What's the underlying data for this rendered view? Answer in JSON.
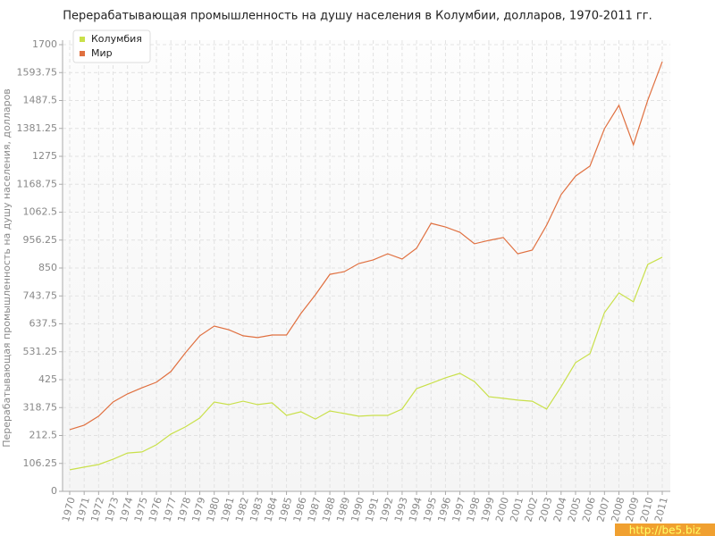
{
  "chart_data": {
    "type": "line",
    "title": "Перерабатывающая промышленность на душу населения в Колумбии, долларов, 1970-2011 гг.",
    "y_label": "Перерабатывающая промышленность на душу населения, долларов",
    "watermark": "http://be5.biz",
    "categories": [
      "1970",
      "1971",
      "1972",
      "1973",
      "1974",
      "1975",
      "1976",
      "1977",
      "1978",
      "1979",
      "1980",
      "1981",
      "1982",
      "1983",
      "1984",
      "1985",
      "1986",
      "1987",
      "1988",
      "1989",
      "1990",
      "1991",
      "1992",
      "1993",
      "1994",
      "1995",
      "1996",
      "1997",
      "1998",
      "1999",
      "2000",
      "2001",
      "2002",
      "2003",
      "2004",
      "2005",
      "2006",
      "2007",
      "2008",
      "2009",
      "2010",
      "2011"
    ],
    "series": [
      {
        "name": "Колумбия",
        "color": "#c9e04a",
        "values": [
          82,
          92,
          102,
          122,
          146,
          150,
          177,
          218,
          245,
          279,
          340,
          330,
          343,
          330,
          337,
          289,
          303,
          275,
          306,
          296,
          286,
          289,
          289,
          313,
          391,
          411,
          432,
          449,
          418,
          360,
          354,
          347,
          343,
          313,
          398,
          490,
          524,
          680,
          755,
          721,
          864,
          891
        ]
      },
      {
        "name": "Мир",
        "color": "#e07040",
        "values": [
          235,
          252,
          286,
          340,
          371,
          394,
          415,
          456,
          527,
          592,
          629,
          615,
          592,
          585,
          595,
          595,
          677,
          748,
          826,
          836,
          867,
          881,
          904,
          884,
          925,
          1020,
          1006,
          986,
          942,
          955,
          966,
          904,
          918,
          1013,
          1129,
          1200,
          1238,
          1380,
          1469,
          1319,
          1489,
          1635
        ]
      }
    ],
    "ylim": [
      0,
      1700
    ],
    "yticks": [
      0,
      106.25,
      212.5,
      318.75,
      425,
      531.25,
      637.5,
      743.75,
      850,
      956.25,
      1062.5,
      1168.75,
      1275,
      1381.25,
      1487.5,
      1593.75,
      1700
    ],
    "grid": true,
    "legend": "top-left"
  }
}
